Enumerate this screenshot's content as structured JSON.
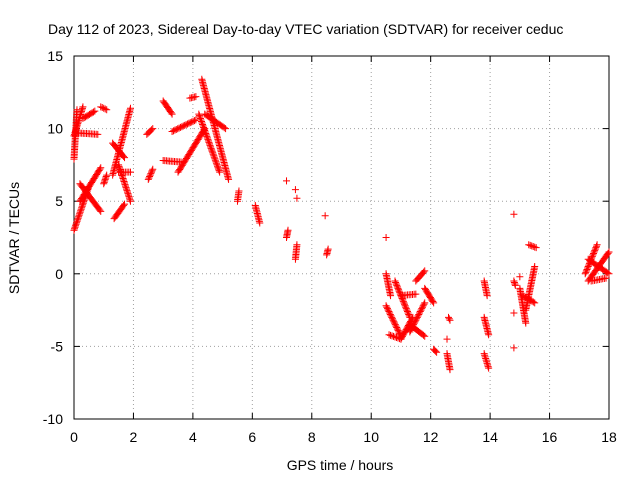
{
  "chart_data": {
    "type": "scatter",
    "title": "Day 112 of 2023, Sidereal Day-to-day VTEC variation (SDTVAR) for receiver ceduc",
    "xlabel": "GPS time / hours",
    "ylabel": "SDTVAR / TECUs",
    "xlim": [
      0,
      18
    ],
    "ylim": [
      -10,
      15
    ],
    "x_ticks": [
      0,
      2,
      4,
      6,
      8,
      10,
      12,
      14,
      16,
      18
    ],
    "x_tick_labels": [
      "0",
      "2",
      "4",
      "6",
      "8",
      "10",
      "12",
      "14",
      "16",
      "18"
    ],
    "y_ticks": [
      -10,
      -5,
      0,
      5,
      10,
      15
    ],
    "y_tick_labels": [
      "-10",
      "-5",
      "0",
      "5",
      "10",
      "15"
    ],
    "grid": true,
    "marker": "+",
    "marker_color": "#ff0000",
    "series": [
      {
        "name": "SDTVAR",
        "segments": [
          {
            "x": [
              0.0,
              0.5
            ],
            "y": [
              3.0,
              6.0
            ]
          },
          {
            "x": [
              0.0,
              0.1
            ],
            "y": [
              7.9,
              11.3
            ]
          },
          {
            "x": [
              0.0,
              0.3
            ],
            "y": [
              9.5,
              11.5
            ]
          },
          {
            "x": [
              0.15,
              0.8
            ],
            "y": [
              9.7,
              9.6
            ]
          },
          {
            "x": [
              0.3,
              0.7
            ],
            "y": [
              10.7,
              11.2
            ]
          },
          {
            "x": [
              0.2,
              0.9
            ],
            "y": [
              5.0,
              7.3
            ]
          },
          {
            "x": [
              0.2,
              0.9
            ],
            "y": [
              6.2,
              4.3
            ]
          },
          {
            "x": [
              0.9,
              1.1
            ],
            "y": [
              11.5,
              11.3
            ]
          },
          {
            "x": [
              1.0,
              1.1
            ],
            "y": [
              6.2,
              6.8
            ]
          },
          {
            "x": [
              1.3,
              1.7
            ],
            "y": [
              9.0,
              8.0
            ]
          },
          {
            "x": [
              1.3,
              1.9
            ],
            "y": [
              6.8,
              11.4
            ]
          },
          {
            "x": [
              1.35,
              1.7
            ],
            "y": [
              3.8,
              4.8
            ]
          },
          {
            "x": [
              1.5,
              1.9
            ],
            "y": [
              7.5,
              5.0
            ]
          },
          {
            "x": [
              1.5,
              1.9
            ],
            "y": [
              7.0,
              7.0
            ]
          },
          {
            "x": [
              2.45,
              2.65
            ],
            "y": [
              9.6,
              10.0
            ]
          },
          {
            "x": [
              2.5,
              2.65
            ],
            "y": [
              6.5,
              7.2
            ]
          },
          {
            "x": [
              3.0,
              3.3
            ],
            "y": [
              11.9,
              11.0
            ]
          },
          {
            "x": [
              3.3,
              4.1
            ],
            "y": [
              9.8,
              10.6
            ]
          },
          {
            "x": [
              3.0,
              3.6
            ],
            "y": [
              7.8,
              7.7
            ]
          },
          {
            "x": [
              3.5,
              4.4
            ],
            "y": [
              7.0,
              10.0
            ]
          },
          {
            "x": [
              3.9,
              4.1
            ],
            "y": [
              12.1,
              12.2
            ]
          },
          {
            "x": [
              4.3,
              5.2
            ],
            "y": [
              13.4,
              6.5
            ]
          },
          {
            "x": [
              4.4,
              5.1
            ],
            "y": [
              11.0,
              10.0
            ]
          },
          {
            "x": [
              4.2,
              4.9
            ],
            "y": [
              11.0,
              7.0
            ]
          },
          {
            "x": [
              5.5,
              5.55
            ],
            "y": [
              5.0,
              5.7
            ]
          },
          {
            "x": [
              6.1,
              6.25
            ],
            "y": [
              4.7,
              3.5
            ]
          },
          {
            "x": [
              7.15,
              7.2
            ],
            "y": [
              2.5,
              3.0
            ]
          },
          {
            "x": [
              7.45,
              7.5
            ],
            "y": [
              1.0,
              2.0
            ]
          },
          {
            "x": [
              8.5,
              8.55
            ],
            "y": [
              1.3,
              1.7
            ]
          },
          {
            "x": [
              10.5,
              10.65
            ],
            "y": [
              0.0,
              -1.5
            ]
          },
          {
            "x": [
              10.5,
              11.0
            ],
            "y": [
              -2.2,
              -4.3
            ]
          },
          {
            "x": [
              10.6,
              11.0
            ],
            "y": [
              -4.2,
              -4.5
            ]
          },
          {
            "x": [
              10.8,
              11.3
            ],
            "y": [
              -0.5,
              -3.0
            ]
          },
          {
            "x": [
              11.0,
              11.5
            ],
            "y": [
              -1.5,
              -1.4
            ]
          },
          {
            "x": [
              11.0,
              11.4
            ],
            "y": [
              -4.5,
              -3.0
            ]
          },
          {
            "x": [
              11.3,
              11.8
            ],
            "y": [
              -4.0,
              -2.0
            ]
          },
          {
            "x": [
              11.3,
              11.8
            ],
            "y": [
              -3.5,
              -4.3
            ]
          },
          {
            "x": [
              11.5,
              11.8
            ],
            "y": [
              -0.5,
              0.2
            ]
          },
          {
            "x": [
              11.8,
              12.1
            ],
            "y": [
              -1.0,
              -2.0
            ]
          },
          {
            "x": [
              12.1,
              12.2
            ],
            "y": [
              -5.2,
              -5.4
            ]
          },
          {
            "x": [
              12.55,
              12.65
            ],
            "y": [
              -5.5,
              -6.6
            ]
          },
          {
            "x": [
              12.6,
              12.65
            ],
            "y": [
              -3.0,
              -3.2
            ]
          },
          {
            "x": [
              13.8,
              13.95
            ],
            "y": [
              -3.0,
              -4.2
            ]
          },
          {
            "x": [
              13.8,
              13.95
            ],
            "y": [
              -5.5,
              -6.5
            ]
          },
          {
            "x": [
              13.8,
              13.9
            ],
            "y": [
              -0.5,
              -1.5
            ]
          },
          {
            "x": [
              14.8,
              14.85
            ],
            "y": [
              -0.5,
              -0.8
            ]
          },
          {
            "x": [
              15.0,
              15.2
            ],
            "y": [
              -1.0,
              -3.4
            ]
          },
          {
            "x": [
              15.1,
              15.5
            ],
            "y": [
              -1.5,
              -2.0
            ]
          },
          {
            "x": [
              15.2,
              15.5
            ],
            "y": [
              -2.5,
              0.5
            ]
          },
          {
            "x": [
              15.3,
              15.55
            ],
            "y": [
              2.0,
              1.8
            ]
          },
          {
            "x": [
              17.2,
              17.6
            ],
            "y": [
              0.0,
              2.0
            ]
          },
          {
            "x": [
              17.3,
              18.0
            ],
            "y": [
              -0.5,
              1.5
            ]
          },
          {
            "x": [
              17.3,
              18.0
            ],
            "y": [
              1.0,
              0.0
            ]
          },
          {
            "x": [
              17.4,
              17.9
            ],
            "y": [
              -0.5,
              -0.3
            ]
          }
        ],
        "isolated_points": [
          {
            "x": 7.15,
            "y": 6.4
          },
          {
            "x": 7.45,
            "y": 5.8
          },
          {
            "x": 7.5,
            "y": 5.2
          },
          {
            "x": 8.45,
            "y": 4.0
          },
          {
            "x": 10.5,
            "y": 2.5
          },
          {
            "x": 14.8,
            "y": 4.1
          },
          {
            "x": 14.8,
            "y": -5.1
          },
          {
            "x": 14.8,
            "y": -2.7
          },
          {
            "x": 12.55,
            "y": -4.5
          },
          {
            "x": 15.0,
            "y": -0.2
          }
        ]
      }
    ]
  }
}
